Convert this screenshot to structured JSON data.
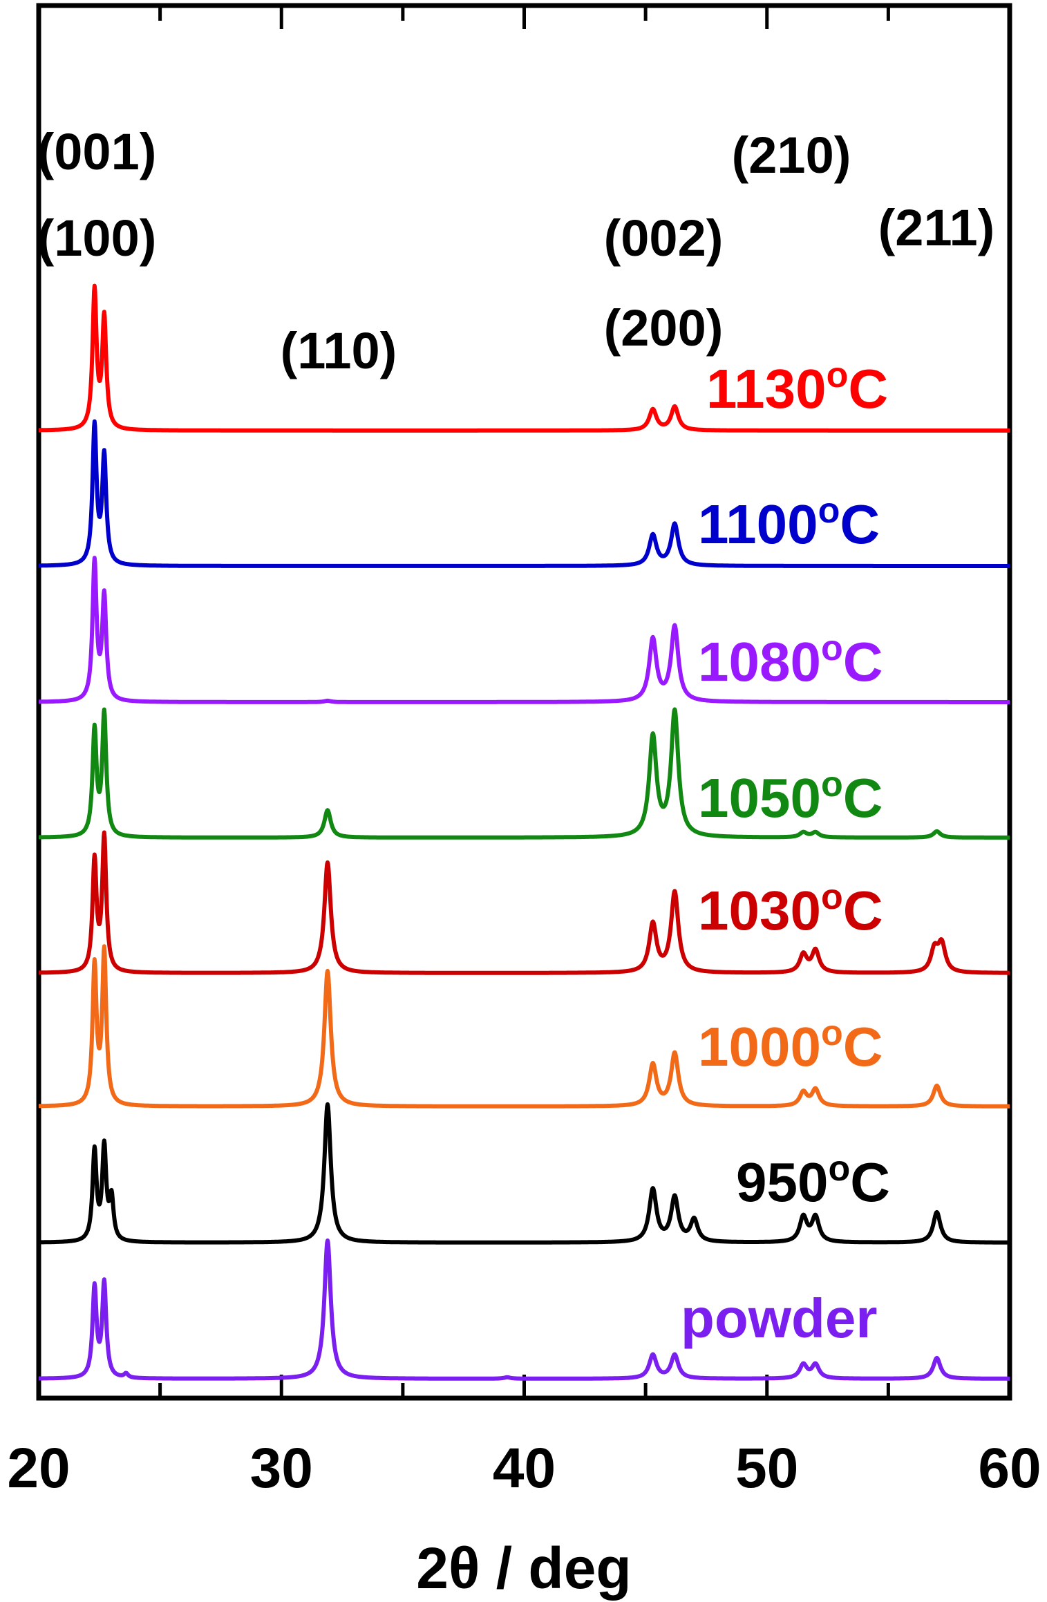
{
  "chart_data": {
    "type": "line",
    "title": "",
    "xlabel": "2θ / deg",
    "ylabel": "",
    "xlim": [
      20,
      60
    ],
    "x_ticks": [
      20,
      30,
      40,
      50,
      60
    ],
    "y_ticks_shown": false,
    "grid": false,
    "layout": "stacked-offset",
    "peak_annotations": [
      {
        "text": "(001)",
        "x": 22.3
      },
      {
        "text": "(100)",
        "x": 22.3
      },
      {
        "text": "(110)",
        "x": 31.9
      },
      {
        "text": "(002)",
        "x": 45.9
      },
      {
        "text": "(200)",
        "x": 45.9
      },
      {
        "text": "(210)",
        "x": 51.5
      },
      {
        "text": "(211)",
        "x": 57.0
      }
    ],
    "series": [
      {
        "name": "1130°C",
        "label_main": "1130",
        "label_unit_deg": "o",
        "label_unit_c": "C",
        "color": "#ff0000",
        "peaks": [
          [
            22.3,
            100
          ],
          [
            22.7,
            80
          ],
          [
            45.3,
            15
          ],
          [
            46.2,
            17
          ]
        ]
      },
      {
        "name": "1100°C",
        "label_main": "1100",
        "label_unit_deg": "o",
        "label_unit_c": "C",
        "color": "#0000cc",
        "peaks": [
          [
            22.3,
            100
          ],
          [
            22.7,
            78
          ],
          [
            45.3,
            22
          ],
          [
            46.2,
            30
          ]
        ]
      },
      {
        "name": "1080°C",
        "label_main": "1080",
        "label_unit_deg": "o",
        "label_unit_c": "C",
        "color": "#9a1aff",
        "peaks": [
          [
            22.3,
            100
          ],
          [
            22.7,
            75
          ],
          [
            31.9,
            1
          ],
          [
            45.3,
            45
          ],
          [
            46.2,
            54
          ]
        ]
      },
      {
        "name": "1050°C",
        "label_main": "1050",
        "label_unit_deg": "o",
        "label_unit_c": "C",
        "color": "#118811",
        "peaks": [
          [
            22.3,
            85
          ],
          [
            22.7,
            98
          ],
          [
            31.9,
            22
          ],
          [
            45.3,
            80
          ],
          [
            46.2,
            100
          ],
          [
            51.5,
            4
          ],
          [
            52.0,
            4
          ],
          [
            57.0,
            5
          ]
        ]
      },
      {
        "name": "1030°C",
        "label_main": "1030",
        "label_unit_deg": "o",
        "label_unit_c": "C",
        "color": "#cc0000",
        "peaks": [
          [
            22.3,
            80
          ],
          [
            22.7,
            97
          ],
          [
            31.9,
            80
          ],
          [
            45.3,
            35
          ],
          [
            46.2,
            58
          ],
          [
            51.5,
            13
          ],
          [
            52.0,
            16
          ],
          [
            56.9,
            16
          ],
          [
            57.2,
            20
          ]
        ]
      },
      {
        "name": "1000°C",
        "label_main": "1000",
        "label_unit_deg": "o",
        "label_unit_c": "C",
        "color": "#f26a18",
        "peaks": [
          [
            22.3,
            100
          ],
          [
            22.7,
            110
          ],
          [
            31.9,
            98
          ],
          [
            45.3,
            30
          ],
          [
            46.2,
            38
          ],
          [
            51.5,
            10
          ],
          [
            52.0,
            12
          ],
          [
            57.0,
            15
          ]
        ]
      },
      {
        "name": "950°C",
        "label_main": "950",
        "label_unit_deg": "o",
        "label_unit_c": "C",
        "color": "#000000",
        "peaks": [
          [
            22.3,
            65
          ],
          [
            22.7,
            67
          ],
          [
            23.0,
            30
          ],
          [
            31.9,
            100
          ],
          [
            45.3,
            38
          ],
          [
            46.2,
            32
          ],
          [
            47.0,
            16
          ],
          [
            51.5,
            18
          ],
          [
            52.0,
            18
          ],
          [
            57.0,
            22
          ]
        ]
      },
      {
        "name": "powder",
        "label_main": "powder",
        "label_unit_deg": "",
        "label_unit_c": "",
        "color": "#7a1ff0",
        "peaks": [
          [
            22.3,
            65
          ],
          [
            22.7,
            68
          ],
          [
            23.6,
            3
          ],
          [
            31.9,
            100
          ],
          [
            39.3,
            1
          ],
          [
            45.3,
            17
          ],
          [
            46.2,
            17
          ],
          [
            51.5,
            10
          ],
          [
            52.0,
            10
          ],
          [
            57.0,
            15
          ]
        ]
      }
    ]
  }
}
